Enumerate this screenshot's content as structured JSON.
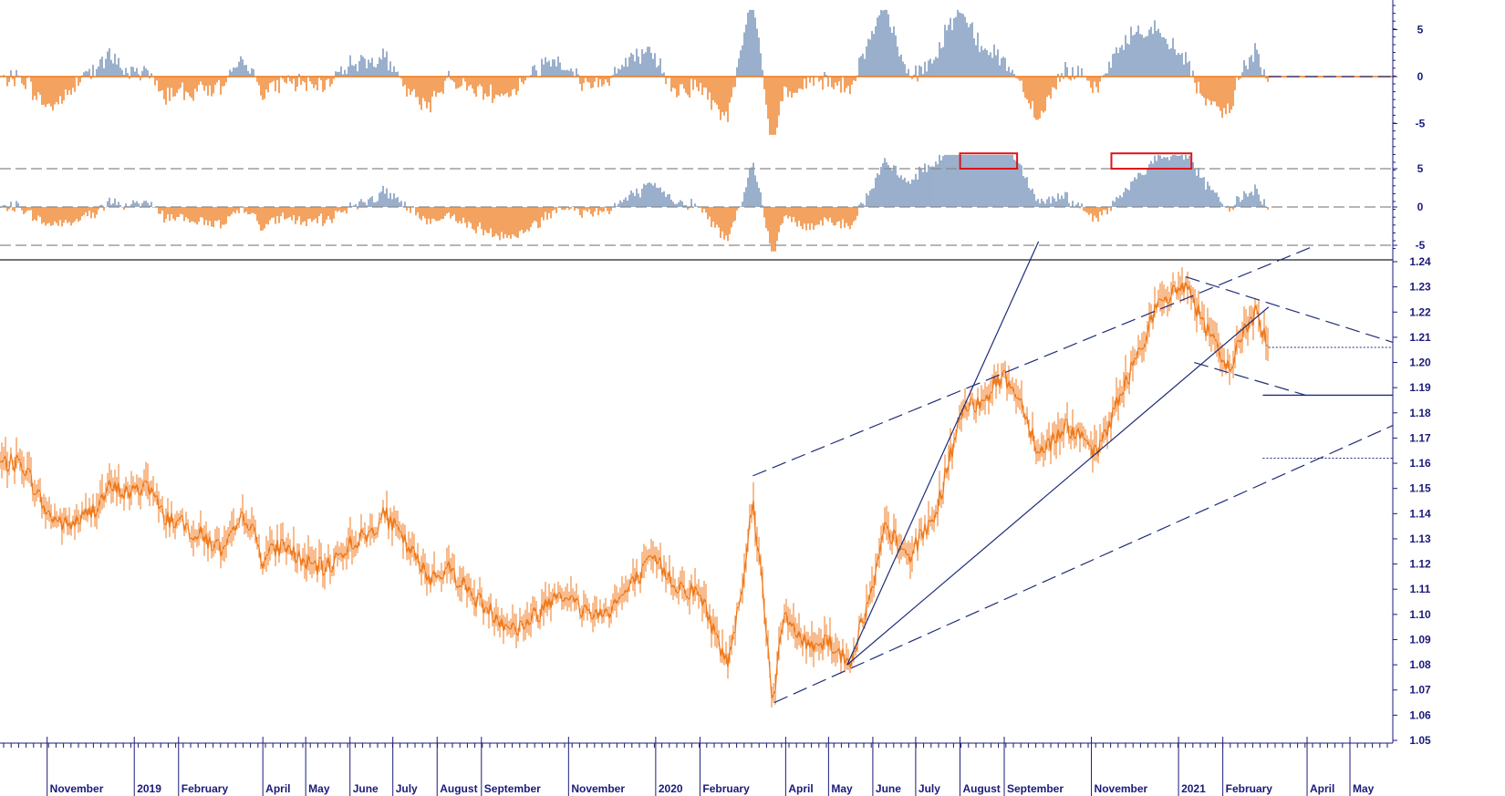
{
  "chart_data": [
    {
      "type": "bar",
      "panel": "oscillator-top",
      "y_ticks": [
        "5",
        "0",
        "-5"
      ],
      "ylim": [
        -6.2,
        7.5
      ],
      "reference_lines": [
        0
      ],
      "colors": {
        "positive": "#6f8db6",
        "negative": "#f07a1c"
      },
      "grid": false
    },
    {
      "type": "bar",
      "panel": "oscillator-middle",
      "y_ticks": [
        "5",
        "0",
        "-5"
      ],
      "ylim": [
        -5.8,
        7.2
      ],
      "reference_lines": [
        5,
        0,
        -5
      ],
      "highlight_boxes": [
        "Aug–Sep 2020",
        "Dec 2020–Jan 2021"
      ],
      "colors": {
        "positive": "#6f8db6",
        "negative": "#f07a1c",
        "highlight": "#e0141b"
      },
      "grid": false
    },
    {
      "type": "line",
      "panel": "price",
      "y_ticks": [
        "1.24",
        "1.23",
        "1.22",
        "1.21",
        "1.20",
        "1.19",
        "1.18",
        "1.17",
        "1.16",
        "1.15",
        "1.14",
        "1.13",
        "1.12",
        "1.11",
        "1.10",
        "1.09",
        "1.08",
        "1.07",
        "1.06",
        "1.05"
      ],
      "ylim": [
        1.05,
        1.24
      ],
      "x_labels": [
        "November",
        "2019",
        "February",
        "April",
        "May",
        "June",
        "July",
        "August",
        "September",
        "November",
        "2020",
        "February",
        "April",
        "May",
        "June",
        "July",
        "August",
        "September",
        "November",
        "2021",
        "February",
        "April",
        "May"
      ],
      "series": [
        {
          "values": [
            [
              "2018-10-15",
              1.16
            ],
            [
              "2018-11-01",
              1.14
            ],
            [
              "2018-11-15",
              1.135
            ],
            [
              "2018-12-01",
              1.14
            ],
            [
              "2018-12-15",
              1.15
            ],
            [
              "2019-01-01",
              1.148
            ],
            [
              "2019-01-10",
              1.153
            ],
            [
              "2019-01-20",
              1.14
            ],
            [
              "2019-02-05",
              1.135
            ],
            [
              "2019-02-20",
              1.13
            ],
            [
              "2019-03-05",
              1.125
            ],
            [
              "2019-03-20",
              1.14
            ],
            [
              "2019-04-01",
              1.122
            ],
            [
              "2019-04-15",
              1.128
            ],
            [
              "2019-05-01",
              1.12
            ],
            [
              "2019-05-15",
              1.118
            ],
            [
              "2019-06-01",
              1.128
            ],
            [
              "2019-06-15",
              1.132
            ],
            [
              "2019-06-25",
              1.14
            ],
            [
              "2019-07-10",
              1.128
            ],
            [
              "2019-07-25",
              1.115
            ],
            [
              "2019-08-10",
              1.118
            ],
            [
              "2019-08-25",
              1.108
            ],
            [
              "2019-09-10",
              1.1
            ],
            [
              "2019-09-25",
              1.094
            ],
            [
              "2019-10-10",
              1.1
            ],
            [
              "2019-10-25",
              1.11
            ],
            [
              "2019-11-10",
              1.102
            ],
            [
              "2019-11-25",
              1.1
            ],
            [
              "2019-12-10",
              1.108
            ],
            [
              "2019-12-31",
              1.122
            ],
            [
              "2020-01-15",
              1.112
            ],
            [
              "2020-02-01",
              1.108
            ],
            [
              "2020-02-20",
              1.08
            ],
            [
              "2020-03-01",
              1.11
            ],
            [
              "2020-03-09",
              1.145
            ],
            [
              "2020-03-16",
              1.11
            ],
            [
              "2020-03-23",
              1.065
            ],
            [
              "2020-03-31",
              1.1
            ],
            [
              "2020-04-15",
              1.088
            ],
            [
              "2020-05-01",
              1.09
            ],
            [
              "2020-05-15",
              1.08
            ],
            [
              "2020-06-01",
              1.11
            ],
            [
              "2020-06-10",
              1.135
            ],
            [
              "2020-06-25",
              1.122
            ],
            [
              "2020-07-15",
              1.14
            ],
            [
              "2020-08-01",
              1.178
            ],
            [
              "2020-08-15",
              1.185
            ],
            [
              "2020-09-01",
              1.195
            ],
            [
              "2020-09-15",
              1.182
            ],
            [
              "2020-09-25",
              1.164
            ],
            [
              "2020-10-15",
              1.175
            ],
            [
              "2020-11-04",
              1.163
            ],
            [
              "2020-11-20",
              1.185
            ],
            [
              "2020-12-01",
              1.2
            ],
            [
              "2020-12-15",
              1.22
            ],
            [
              "2021-01-06",
              1.232
            ],
            [
              "2021-01-20",
              1.213
            ],
            [
              "2021-02-05",
              1.197
            ],
            [
              "2021-02-15",
              1.212
            ],
            [
              "2021-02-25",
              1.22
            ],
            [
              "2021-03-05",
              1.206
            ]
          ]
        }
      ],
      "trendlines": "dashed channel lines, solid uptrend lines from May 2020, horizontal marker lines at 1.206, 1.187 and 1.162",
      "colors": {
        "price": "#f07a1c",
        "lines": "#1f2d7a",
        "axis_text": "#1a1a7a"
      },
      "grid": false
    }
  ]
}
